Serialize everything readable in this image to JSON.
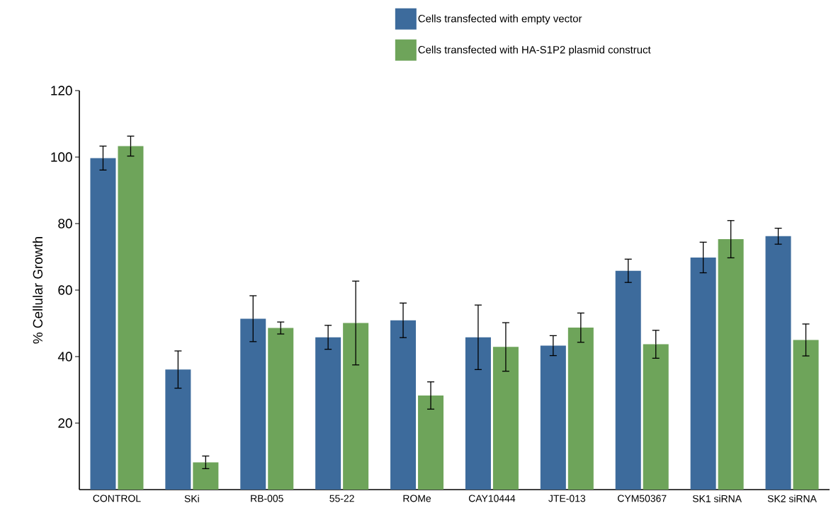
{
  "chart_data": {
    "type": "bar",
    "ylabel": "% Cellular Growth",
    "categories": [
      "CONTROL",
      "SKi",
      "RB-005",
      "55-22",
      "ROMe",
      "CAY10444",
      "JTE-013",
      "CYM50367",
      "SK1 siRNA",
      "SK2 siRNA"
    ],
    "series": [
      {
        "name": "Cells transfected with empty vector",
        "color": "#3d6b9c",
        "values": [
          99.7,
          36.1,
          51.4,
          45.8,
          50.9,
          45.8,
          43.3,
          65.8,
          69.8,
          76.2
        ],
        "errors": [
          3.6,
          5.6,
          6.9,
          3.6,
          5.2,
          9.7,
          3.0,
          3.5,
          4.6,
          2.4
        ]
      },
      {
        "name": "Cells transfected with HA-S1P2 plasmid construct",
        "color": "#6ea45a",
        "values": [
          103.3,
          8.2,
          48.6,
          50.1,
          28.3,
          42.9,
          48.7,
          43.7,
          75.3,
          45.0
        ],
        "errors": [
          3.0,
          1.9,
          1.8,
          12.6,
          4.1,
          7.3,
          4.4,
          4.2,
          5.6,
          4.8
        ]
      }
    ],
    "ylim": [
      0,
      120
    ],
    "yticks": [
      20,
      40,
      60,
      80,
      100,
      120
    ],
    "legend": "top right"
  }
}
